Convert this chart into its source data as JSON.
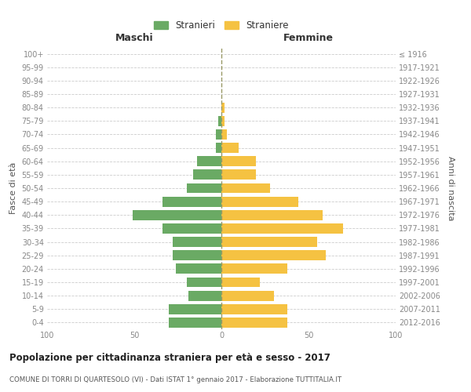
{
  "age_groups": [
    "0-4",
    "5-9",
    "10-14",
    "15-19",
    "20-24",
    "25-29",
    "30-34",
    "35-39",
    "40-44",
    "45-49",
    "50-54",
    "55-59",
    "60-64",
    "65-69",
    "70-74",
    "75-79",
    "80-84",
    "85-89",
    "90-94",
    "95-99",
    "100+"
  ],
  "birth_years": [
    "2012-2016",
    "2007-2011",
    "2002-2006",
    "1997-2001",
    "1992-1996",
    "1987-1991",
    "1982-1986",
    "1977-1981",
    "1972-1976",
    "1967-1971",
    "1962-1966",
    "1957-1961",
    "1952-1956",
    "1947-1951",
    "1942-1946",
    "1937-1941",
    "1932-1936",
    "1927-1931",
    "1922-1926",
    "1917-1921",
    "≤ 1916"
  ],
  "maschi": [
    30,
    30,
    19,
    20,
    26,
    28,
    28,
    34,
    51,
    34,
    20,
    16,
    14,
    3,
    3,
    2,
    0,
    0,
    0,
    0,
    0
  ],
  "femmine": [
    38,
    38,
    30,
    22,
    38,
    60,
    55,
    70,
    58,
    44,
    28,
    20,
    20,
    10,
    3,
    2,
    2,
    0,
    0,
    0,
    0
  ],
  "color_maschi": "#6aaa64",
  "color_femmine": "#f5c242",
  "title": "Popolazione per cittadinanza straniera per età e sesso - 2017",
  "subtitle": "COMUNE DI TORRI DI QUARTESOLO (VI) - Dati ISTAT 1° gennaio 2017 - Elaborazione TUTTITALIA.IT",
  "ylabel_left": "Fasce di età",
  "ylabel_right": "Anni di nascita",
  "xlabel_left": "Maschi",
  "xlabel_right": "Femmine",
  "legend_maschi": "Stranieri",
  "legend_femmine": "Straniere",
  "xlim": 100,
  "background_color": "#ffffff",
  "grid_color": "#cccccc",
  "axis_label_color": "#555555",
  "tick_label_color": "#888888",
  "dashed_line_color": "#999966"
}
